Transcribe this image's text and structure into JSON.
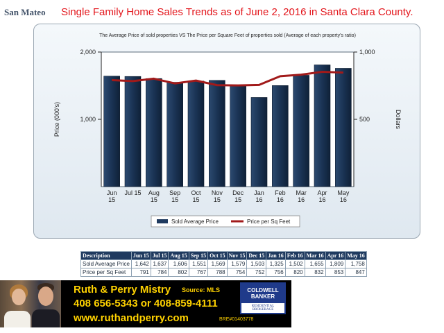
{
  "region_label": "San Mateo",
  "headline": "Single Family Home Sales Trends as of June 2, 2016  in Santa Clara County.",
  "colors": {
    "bar": "#1f3a5f",
    "line": "#a11a1a",
    "headline": "#e3141a",
    "banner_text": "#ffd200"
  },
  "chart_data": {
    "type": "bar",
    "title": "The Average Price of sold properties VS The Price per Square Feet of properties sold (Average of each property's ratio)",
    "categories": [
      [
        "Jun",
        "15"
      ],
      [
        "Jul 15",
        ""
      ],
      [
        "Aug",
        "15"
      ],
      [
        "Sep",
        "15"
      ],
      [
        "Oct",
        "15"
      ],
      [
        "Nov",
        "15"
      ],
      [
        "Dec",
        "15"
      ],
      [
        "Jan",
        "16"
      ],
      [
        "Feb",
        "16"
      ],
      [
        "Mar",
        "16"
      ],
      [
        "Apr",
        "16"
      ],
      [
        "May",
        "16"
      ]
    ],
    "series": [
      {
        "name": "Sold Average Price",
        "type": "bar",
        "axis": "left",
        "values": [
          1642,
          1637,
          1606,
          1551,
          1569,
          1579,
          1503,
          1325,
          1502,
          1655,
          1809,
          1758
        ]
      },
      {
        "name": "Price per Sq Feet",
        "type": "line",
        "axis": "right",
        "values": [
          791,
          784,
          802,
          767,
          788,
          754,
          752,
          756,
          820,
          832,
          853,
          847
        ]
      }
    ],
    "ylabel": "Price (000's)",
    "ylabel_right": "Dollars",
    "ylim": [
      0,
      2000
    ],
    "ylim_right": [
      0,
      1000
    ],
    "yticks": [
      "2,000",
      "1,000"
    ],
    "yticks_right": [
      "1,000",
      "500"
    ],
    "legend_position": "bottom",
    "grid": false
  },
  "table": {
    "headers": [
      "Description",
      "Jun 15",
      "Jul 15",
      "Aug 15",
      "Sep 15",
      "Oct 15",
      "Nov 15",
      "Dec 15",
      "Jan 16",
      "Feb 16",
      "Mar 16",
      "Apr 16",
      "May 16"
    ],
    "rows": [
      [
        "Sold Average Price",
        "1,642",
        "1,637",
        "1,606",
        "1,551",
        "1,569",
        "1,579",
        "1,503",
        "1,325",
        "1,502",
        "1,655",
        "1,809",
        "1,758"
      ],
      [
        "Price per Sq Feet",
        "791",
        "784",
        "802",
        "767",
        "788",
        "754",
        "752",
        "756",
        "820",
        "832",
        "853",
        "847"
      ]
    ]
  },
  "banner": {
    "names": "Ruth & Perry Mistry",
    "source": "Source:  MLS",
    "phones": "408 656-5343 or 408-859-4111",
    "website": "www.ruthandperry.com",
    "license": "BRE#01403778",
    "logo_line1": "COLDWELL",
    "logo_line2": "BANKER",
    "logo_line3": "RESIDENTIAL BROKERAGE"
  }
}
